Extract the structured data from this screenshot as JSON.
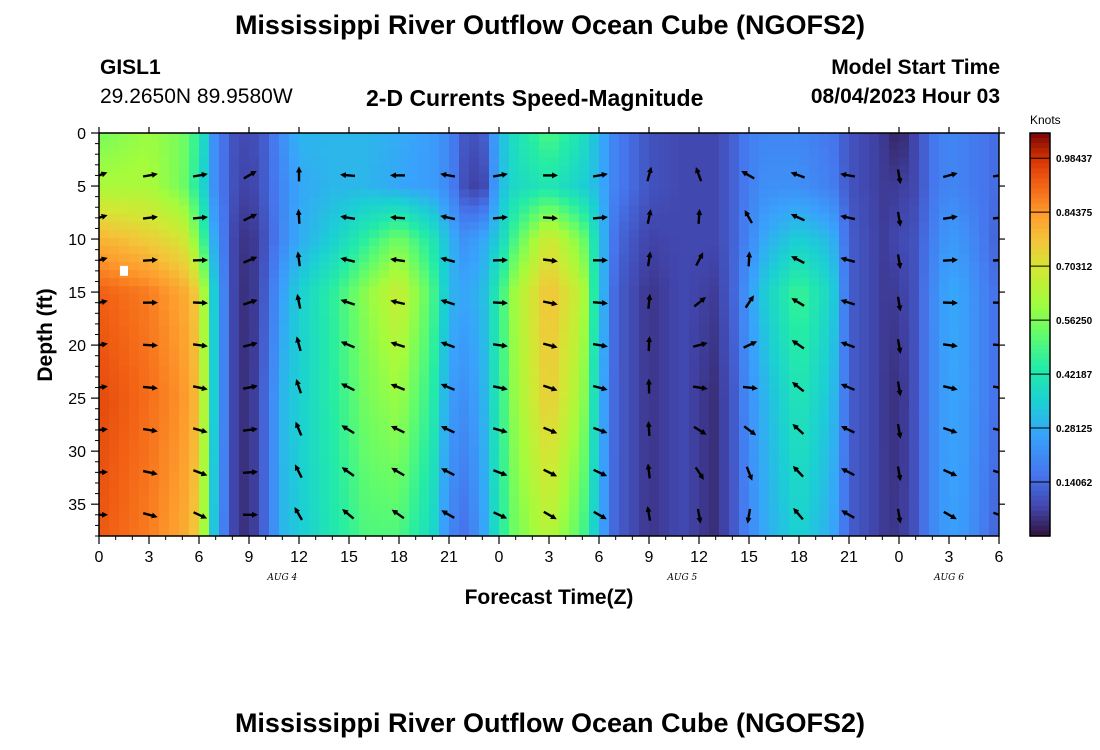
{
  "header": {
    "title": "Mississippi River Outflow Ocean Cube (NGOFS2)",
    "station_id": "GISL1",
    "station_coords": "29.2650N  89.9580W",
    "subtitle": "2-D Currents Speed-Magnitude",
    "model_start_label": "Model Start Time",
    "model_start_value": "08/04/2023 Hour 03"
  },
  "footer": {
    "title": "Mississippi River Outflow Ocean Cube (NGOFS2)"
  },
  "chart_data": {
    "type": "heatmap",
    "title": "2-D Currents Speed-Magnitude",
    "xlabel": "Forecast Time(Z)",
    "ylabel": "Depth (ft)",
    "x_range_hours": [
      0,
      54
    ],
    "y_range": [
      0,
      38
    ],
    "y_inverted": true,
    "x_tick_labels": [
      "0",
      "3",
      "6",
      "9",
      "12",
      "15",
      "18",
      "21",
      "0",
      "3",
      "6",
      "9",
      "12",
      "15",
      "18",
      "21",
      "0",
      "3",
      "6"
    ],
    "y_ticks": [
      0,
      5,
      10,
      15,
      20,
      25,
      30,
      35
    ],
    "day_labels": [
      {
        "label": "AUG 4",
        "hour": 11
      },
      {
        "label": "AUG 5",
        "hour": 35
      },
      {
        "label": "AUG 6",
        "hour": 51
      }
    ],
    "colorbar": {
      "unit": "Knots",
      "ticks": [
        "0.98437",
        "0.84375",
        "0.70312",
        "0.56250",
        "0.42187",
        "0.28125",
        "0.14062"
      ],
      "min": 0,
      "max": 1.05
    },
    "speed_by_hour": [
      {
        "hour": 0,
        "speed": [
          0.55,
          0.62,
          0.8,
          0.92,
          0.95,
          0.93
        ]
      },
      {
        "hour": 3,
        "speed": [
          0.6,
          0.62,
          0.75,
          0.88,
          0.9,
          0.88
        ]
      },
      {
        "hour": 5,
        "speed": [
          0.55,
          0.55,
          0.7,
          0.82,
          0.85,
          0.82
        ]
      },
      {
        "hour": 6,
        "speed": [
          0.45,
          0.42,
          0.55,
          0.75,
          0.78,
          0.75
        ]
      },
      {
        "hour": 7,
        "speed": [
          0.2,
          0.2,
          0.25,
          0.3,
          0.3,
          0.28
        ]
      },
      {
        "hour": 8,
        "speed": [
          0.1,
          0.1,
          0.08,
          0.08,
          0.08,
          0.08
        ]
      },
      {
        "hour": 9,
        "speed": [
          0.08,
          0.06,
          0.04,
          0.03,
          0.03,
          0.03
        ]
      },
      {
        "hour": 10,
        "speed": [
          0.12,
          0.12,
          0.1,
          0.12,
          0.14,
          0.14
        ]
      },
      {
        "hour": 11,
        "speed": [
          0.22,
          0.2,
          0.2,
          0.26,
          0.3,
          0.3
        ]
      },
      {
        "hour": 12,
        "speed": [
          0.3,
          0.27,
          0.28,
          0.35,
          0.35,
          0.34
        ]
      },
      {
        "hour": 14,
        "speed": [
          0.3,
          0.3,
          0.35,
          0.45,
          0.44,
          0.42
        ]
      },
      {
        "hour": 16,
        "speed": [
          0.3,
          0.3,
          0.45,
          0.58,
          0.55,
          0.5
        ]
      },
      {
        "hour": 18,
        "speed": [
          0.28,
          0.27,
          0.55,
          0.68,
          0.6,
          0.5
        ]
      },
      {
        "hour": 20,
        "speed": [
          0.25,
          0.25,
          0.42,
          0.5,
          0.45,
          0.38
        ]
      },
      {
        "hour": 21,
        "speed": [
          0.2,
          0.2,
          0.3,
          0.3,
          0.25,
          0.2
        ]
      },
      {
        "hour": 22,
        "speed": [
          0.1,
          0.08,
          0.22,
          0.27,
          0.22,
          0.15
        ]
      },
      {
        "hour": 23,
        "speed": [
          0.1,
          0.06,
          0.27,
          0.3,
          0.28,
          0.25
        ]
      },
      {
        "hour": 24,
        "speed": [
          0.3,
          0.3,
          0.35,
          0.45,
          0.44,
          0.42
        ]
      },
      {
        "hour": 25,
        "speed": [
          0.4,
          0.38,
          0.5,
          0.62,
          0.6,
          0.55
        ]
      },
      {
        "hour": 27,
        "speed": [
          0.5,
          0.42,
          0.7,
          0.78,
          0.76,
          0.65
        ]
      },
      {
        "hour": 29,
        "speed": [
          0.4,
          0.35,
          0.55,
          0.65,
          0.6,
          0.5
        ]
      },
      {
        "hour": 30,
        "speed": [
          0.3,
          0.3,
          0.35,
          0.35,
          0.32,
          0.3
        ]
      },
      {
        "hour": 31,
        "speed": [
          0.18,
          0.18,
          0.14,
          0.12,
          0.12,
          0.12
        ]
      },
      {
        "hour": 33,
        "speed": [
          0.1,
          0.1,
          0.07,
          0.05,
          0.05,
          0.05
        ]
      },
      {
        "hour": 35,
        "speed": [
          0.08,
          0.08,
          0.08,
          0.08,
          0.08,
          0.08
        ]
      },
      {
        "hour": 37,
        "speed": [
          0.08,
          0.08,
          0.08,
          0.06,
          0.04,
          0.04
        ]
      },
      {
        "hour": 38,
        "speed": [
          0.12,
          0.12,
          0.12,
          0.12,
          0.1,
          0.1
        ]
      },
      {
        "hour": 39,
        "speed": [
          0.18,
          0.18,
          0.2,
          0.25,
          0.22,
          0.2
        ]
      },
      {
        "hour": 40,
        "speed": [
          0.2,
          0.22,
          0.28,
          0.35,
          0.3,
          0.28
        ]
      },
      {
        "hour": 42,
        "speed": [
          0.2,
          0.22,
          0.35,
          0.48,
          0.42,
          0.36
        ]
      },
      {
        "hour": 44,
        "speed": [
          0.16,
          0.18,
          0.3,
          0.36,
          0.32,
          0.28
        ]
      },
      {
        "hour": 45,
        "speed": [
          0.1,
          0.1,
          0.12,
          0.12,
          0.12,
          0.12
        ]
      },
      {
        "hour": 47,
        "speed": [
          0.06,
          0.06,
          0.06,
          0.06,
          0.06,
          0.06
        ]
      },
      {
        "hour": 48,
        "speed": [
          0.02,
          0.06,
          0.08,
          0.06,
          0.04,
          0.05
        ]
      },
      {
        "hour": 49,
        "speed": [
          0.08,
          0.08,
          0.1,
          0.1,
          0.1,
          0.1
        ]
      },
      {
        "hour": 50,
        "speed": [
          0.16,
          0.16,
          0.18,
          0.2,
          0.2,
          0.2
        ]
      },
      {
        "hour": 51,
        "speed": [
          0.2,
          0.2,
          0.25,
          0.28,
          0.27,
          0.26
        ]
      },
      {
        "hour": 52,
        "speed": [
          0.18,
          0.18,
          0.22,
          0.25,
          0.25,
          0.24
        ]
      },
      {
        "hour": 54,
        "speed": [
          0.14,
          0.14,
          0.12,
          0.14,
          0.14,
          0.12
        ]
      }
    ],
    "speed_depths_ft": [
      0,
      5,
      10,
      15,
      25,
      38
    ],
    "arrow_depths_ft": [
      4,
      8,
      12,
      16,
      20,
      24,
      28,
      32,
      36
    ],
    "arrow_direction_by_hour": [
      {
        "hour": 0,
        "upper_deg": 20,
        "lower_deg": 0
      },
      {
        "hour": 3,
        "upper_deg": 10,
        "lower_deg": -15
      },
      {
        "hour": 6,
        "upper_deg": 10,
        "lower_deg": -25
      },
      {
        "hour": 9,
        "upper_deg": 30,
        "lower_deg": 0
      },
      {
        "hour": 12,
        "upper_deg": 90,
        "lower_deg": 120
      },
      {
        "hour": 15,
        "upper_deg": 175,
        "lower_deg": 140
      },
      {
        "hour": 18,
        "upper_deg": 180,
        "lower_deg": 145
      },
      {
        "hour": 21,
        "upper_deg": 170,
        "lower_deg": 150
      },
      {
        "hour": 24,
        "upper_deg": 10,
        "lower_deg": -25
      },
      {
        "hour": 27,
        "upper_deg": 0,
        "lower_deg": -30
      },
      {
        "hour": 30,
        "upper_deg": 10,
        "lower_deg": -30
      },
      {
        "hour": 33,
        "upper_deg": 75,
        "lower_deg": 100
      },
      {
        "hour": 36,
        "upper_deg": 110,
        "lower_deg": -80
      },
      {
        "hour": 39,
        "upper_deg": 150,
        "lower_deg": -100
      },
      {
        "hour": 42,
        "upper_deg": 160,
        "lower_deg": 130
      },
      {
        "hour": 45,
        "upper_deg": 170,
        "lower_deg": 150
      },
      {
        "hour": 48,
        "upper_deg": -80,
        "lower_deg": -80
      },
      {
        "hour": 51,
        "upper_deg": 15,
        "lower_deg": -30
      },
      {
        "hour": 54,
        "upper_deg": 10,
        "lower_deg": -20
      }
    ],
    "marker": {
      "hour": 1.5,
      "depth_ft": 13
    }
  }
}
